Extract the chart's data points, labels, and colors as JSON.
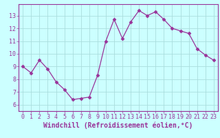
{
  "x": [
    0,
    1,
    2,
    3,
    4,
    5,
    6,
    7,
    8,
    9,
    10,
    11,
    12,
    13,
    14,
    15,
    16,
    17,
    18,
    19,
    20,
    21,
    22,
    23
  ],
  "y": [
    9.0,
    8.5,
    9.5,
    8.8,
    7.8,
    7.2,
    6.4,
    6.5,
    6.6,
    8.3,
    11.0,
    12.7,
    11.2,
    12.5,
    13.4,
    13.0,
    13.3,
    12.7,
    12.0,
    11.8,
    11.6,
    10.4,
    9.9,
    9.5
  ],
  "line_color": "#993399",
  "marker": "D",
  "marker_size": 2.5,
  "bg_color": "#ccffff",
  "grid_color": "#aadddd",
  "xlabel": "Windchill (Refroidissement éolien,°C)",
  "xlim": [
    -0.5,
    23.5
  ],
  "ylim": [
    5.5,
    13.9
  ],
  "yticks": [
    6,
    7,
    8,
    9,
    10,
    11,
    12,
    13
  ],
  "xticks": [
    0,
    1,
    2,
    3,
    4,
    5,
    6,
    7,
    8,
    9,
    10,
    11,
    12,
    13,
    14,
    15,
    16,
    17,
    18,
    19,
    20,
    21,
    22,
    23
  ],
  "tick_fontsize": 6.0,
  "xlabel_fontsize": 7.0,
  "spine_color": "#993399"
}
